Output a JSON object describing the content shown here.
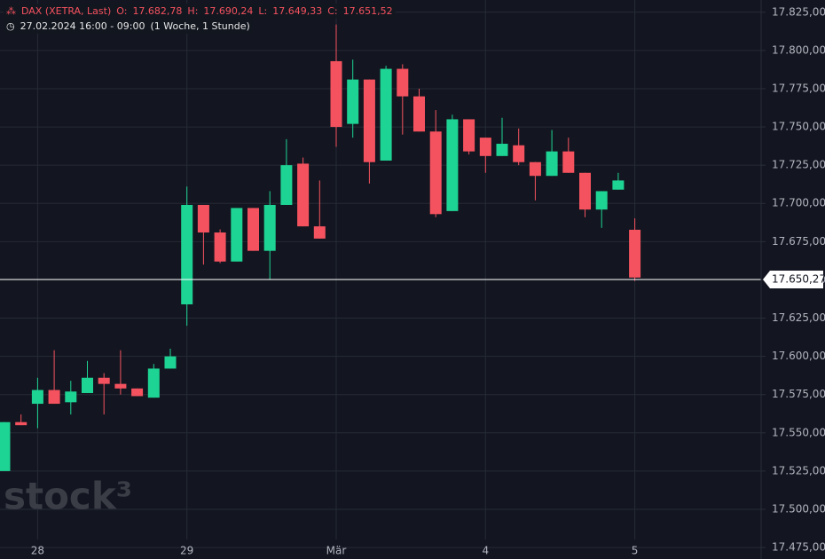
{
  "chart_data": {
    "type": "candlestick",
    "title": "DAX (XETRA, Last)",
    "ohlc_legend": [
      {
        "label": "O:",
        "value": "17.682,78"
      },
      {
        "label": "H:",
        "value": "17.690,24"
      },
      {
        "label": "L:",
        "value": "17.649,33"
      },
      {
        "label": "C:",
        "value": "17.651,52"
      }
    ],
    "subtitle": "27.02.2024 16:00 - 09:00",
    "interval": "(1 Woche, 1 Stunde)",
    "watermark": "stock³",
    "categories": [
      null,
      null,
      "28",
      null,
      null,
      null,
      null,
      null,
      null,
      null,
      null,
      "29",
      null,
      null,
      null,
      null,
      null,
      null,
      null,
      null,
      "Mär",
      null,
      null,
      null,
      null,
      null,
      null,
      null,
      null,
      "4",
      null,
      null,
      null,
      null,
      null,
      null,
      null,
      null,
      "5"
    ],
    "open": [
      17525,
      17557,
      17569,
      17578,
      17570,
      17576,
      17586,
      17582,
      17579,
      17573,
      17592,
      17634,
      17699,
      17681,
      17662,
      17697,
      17669,
      17699,
      17726,
      17685,
      17793,
      17752,
      17781,
      17728,
      17788,
      17770,
      17747,
      17695,
      17755,
      17743,
      17731,
      17738,
      17727,
      17718,
      17734,
      17720,
      17696,
      17709,
      17682.78
    ],
    "high": [
      17557,
      17562,
      17586,
      17604,
      17584,
      17597,
      17589,
      17604,
      17579,
      17595,
      17605,
      17711,
      17699,
      17683,
      17697,
      17697,
      17708,
      17742,
      17730,
      17715,
      17817,
      17794,
      17781,
      17790,
      17791,
      17775,
      17761,
      17758,
      17755,
      17743,
      17756,
      17749,
      17727,
      17748,
      17743,
      17720,
      17708,
      17720,
      17690.24
    ],
    "low": [
      17525,
      17555,
      17553,
      17569,
      17562,
      17576,
      17562,
      17575,
      17574,
      17573,
      17592,
      17620,
      17660,
      17661,
      17662,
      17669,
      17650,
      17699,
      17685,
      17677,
      17737,
      17743,
      17713,
      17728,
      17745,
      17747,
      17691,
      17695,
      17732,
      17720,
      17731,
      17725,
      17702,
      17718,
      17720,
      17691,
      17684,
      17709,
      17649.33
    ],
    "close": [
      17557,
      17555,
      17578,
      17569,
      17577,
      17586,
      17582,
      17579,
      17574,
      17592,
      17600,
      17699,
      17681,
      17662,
      17697,
      17669,
      17699,
      17725,
      17685,
      17677,
      17750,
      17781,
      17727,
      17788,
      17770,
      17747,
      17693,
      17755,
      17734,
      17731,
      17739,
      17727,
      17718,
      17734,
      17720,
      17696,
      17708,
      17715,
      17651.52
    ],
    "up_color": "#1ed494",
    "down_color": "#f5525f",
    "ylim": [
      17467.5,
      17833
    ],
    "yticks": [
      {
        "value": 17475,
        "label": "17.475,00"
      },
      {
        "value": 17500,
        "label": "17.500,00"
      },
      {
        "value": 17525,
        "label": "17.525,00"
      },
      {
        "value": 17550,
        "label": "17.550,00"
      },
      {
        "value": 17575,
        "label": "17.575,00"
      },
      {
        "value": 17600,
        "label": "17.600,00"
      },
      {
        "value": 17625,
        "label": "17.625,00"
      },
      {
        "value": 17650,
        "label": "17.650,00"
      },
      {
        "value": 17675,
        "label": "17.675,00"
      },
      {
        "value": 17700,
        "label": "17.700,00"
      },
      {
        "value": 17725,
        "label": "17.725,00"
      },
      {
        "value": 17750,
        "label": "17.750,00"
      },
      {
        "value": 17775,
        "label": "17.775,00"
      },
      {
        "value": 17800,
        "label": "17.800,00"
      },
      {
        "value": 17825,
        "label": "17.825,00"
      }
    ],
    "last_price": {
      "value": 17650.27,
      "label": "17.650,27"
    },
    "grid": true
  }
}
